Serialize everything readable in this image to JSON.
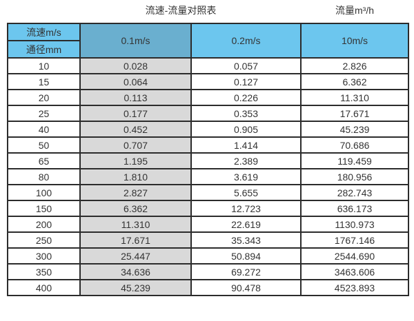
{
  "titles": {
    "left": "流速-流量对照表",
    "right": "流量m³/h"
  },
  "table_header": {
    "corner_top": "流速m/s",
    "corner_bottom": "通径mm",
    "velocities": [
      "0.1m/s",
      "0.2m/s",
      "10m/s"
    ]
  },
  "chart_data": {
    "type": "table",
    "title": "流速-流量对照表",
    "flow_unit_label": "流量m³/h",
    "columns": [
      "通径mm",
      "0.1m/s",
      "0.2m/s",
      "10m/s"
    ],
    "rows": [
      [
        "10",
        "0.028",
        "0.057",
        "2.826"
      ],
      [
        "15",
        "0.064",
        "0.127",
        "6.362"
      ],
      [
        "20",
        "0.113",
        "0.226",
        "11.310"
      ],
      [
        "25",
        "0.177",
        "0.353",
        "17.671"
      ],
      [
        "40",
        "0.452",
        "0.905",
        "45.239"
      ],
      [
        "50",
        "0.707",
        "1.414",
        "70.686"
      ],
      [
        "65",
        "1.195",
        "2.389",
        "119.459"
      ],
      [
        "80",
        "1.810",
        "3.619",
        "180.956"
      ],
      [
        "100",
        "2.827",
        "5.655",
        "282.743"
      ],
      [
        "150",
        "6.362",
        "12.723",
        "636.173"
      ],
      [
        "200",
        "11.310",
        "22.619",
        "1130.973"
      ],
      [
        "250",
        "17.671",
        "35.343",
        "1767.146"
      ],
      [
        "300",
        "25.447",
        "50.894",
        "2544.690"
      ],
      [
        "350",
        "34.636",
        "69.272",
        "3463.606"
      ],
      [
        "400",
        "45.239",
        "90.478",
        "4523.893"
      ]
    ]
  },
  "colors": {
    "header_blue": "#6cc6ee",
    "header_blue_muted": "#6aafcf",
    "column_gray": "#d9d9d9",
    "border": "#2b2b2b",
    "text": "#333333"
  }
}
